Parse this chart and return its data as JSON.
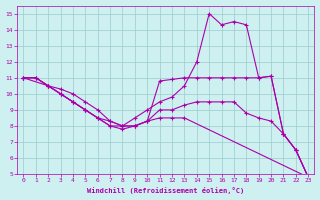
{
  "background_color": "#cff0f0",
  "line_color": "#aa00aa",
  "grid_color": "#99cccc",
  "xlabel": "Windchill (Refroidissement éolien,°C)",
  "xlabel_color": "#aa00aa",
  "tick_color": "#aa00aa",
  "xlim": [
    -0.5,
    23.5
  ],
  "ylim": [
    5,
    15.5
  ],
  "yticks": [
    5,
    6,
    7,
    8,
    9,
    10,
    11,
    12,
    13,
    14,
    15
  ],
  "xticks": [
    0,
    1,
    2,
    3,
    4,
    5,
    6,
    7,
    8,
    9,
    10,
    11,
    12,
    13,
    14,
    15,
    16,
    17,
    18,
    19,
    20,
    21,
    22,
    23
  ],
  "line1_x": [
    0,
    1,
    2,
    3,
    4,
    5,
    6,
    7,
    8,
    9,
    10,
    11,
    12,
    13,
    14,
    15,
    16,
    17,
    18,
    19,
    20,
    21,
    22,
    23
  ],
  "line1_y": [
    11,
    11,
    10.5,
    10,
    9.5,
    9.0,
    8.5,
    8.0,
    8.0,
    8.5,
    9.0,
    9.5,
    9.8,
    10.5,
    12.0,
    15.0,
    14.3,
    14.5,
    14.3,
    11.0,
    11.1,
    7.5,
    6.5,
    4.8
  ],
  "line2_x": [
    0,
    1,
    2,
    3,
    4,
    5,
    6,
    7,
    8,
    9,
    10,
    11,
    12,
    13,
    14,
    15,
    16,
    17,
    18,
    19,
    20,
    21,
    22,
    23
  ],
  "line2_y": [
    11,
    11,
    10.5,
    10.3,
    10.0,
    9.5,
    9.0,
    8.3,
    8.0,
    8.0,
    8.3,
    10.8,
    10.9,
    11.0,
    11.0,
    11.0,
    11.0,
    11.0,
    11.0,
    11.0,
    11.1,
    7.5,
    6.5,
    4.8
  ],
  "line3_x": [
    0,
    2,
    3,
    4,
    5,
    6,
    7,
    8,
    9,
    10,
    11,
    12,
    13,
    23
  ],
  "line3_y": [
    11,
    10.5,
    10.0,
    9.5,
    9.0,
    8.5,
    8.0,
    7.8,
    8.0,
    8.3,
    8.5,
    8.5,
    8.5,
    4.8
  ],
  "line4_x": [
    0,
    1,
    2,
    3,
    4,
    5,
    6,
    7,
    8,
    9,
    10,
    11,
    12,
    13,
    14,
    15,
    16,
    17,
    18,
    19,
    20,
    21,
    22,
    23
  ],
  "line4_y": [
    11,
    11,
    10.5,
    10.0,
    9.5,
    9.0,
    8.5,
    8.3,
    8.0,
    8.0,
    8.3,
    9.0,
    9.0,
    9.3,
    9.5,
    9.5,
    9.5,
    9.5,
    8.8,
    8.5,
    8.3,
    7.5,
    6.5,
    4.8
  ]
}
